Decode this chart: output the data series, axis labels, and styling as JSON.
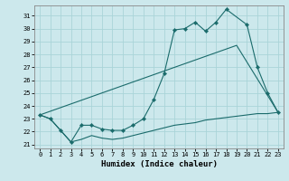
{
  "xlabel": "Humidex (Indice chaleur)",
  "bg_color": "#cce8ec",
  "grid_color": "#aad4d8",
  "line_color": "#1a6b6b",
  "xlim": [
    -0.5,
    23.5
  ],
  "ylim": [
    20.7,
    31.8
  ],
  "yticks": [
    21,
    22,
    23,
    24,
    25,
    26,
    27,
    28,
    29,
    30,
    31
  ],
  "xticks": [
    0,
    1,
    2,
    3,
    4,
    5,
    6,
    7,
    8,
    9,
    10,
    11,
    12,
    13,
    14,
    15,
    16,
    17,
    18,
    19,
    20,
    21,
    22,
    23
  ],
  "line1_x": [
    0,
    1,
    2,
    3,
    4,
    5,
    6,
    7,
    8,
    9,
    10,
    11,
    12,
    13,
    14,
    15,
    16,
    17,
    18,
    20,
    21,
    22,
    23
  ],
  "line1_y": [
    23.3,
    23.0,
    22.1,
    21.2,
    22.5,
    22.5,
    22.2,
    22.1,
    22.1,
    22.5,
    23.0,
    24.5,
    26.5,
    29.9,
    30.0,
    30.5,
    29.8,
    30.5,
    31.5,
    30.3,
    27.0,
    25.0,
    23.5
  ],
  "line2_x": [
    0,
    19,
    23
  ],
  "line2_y": [
    23.3,
    28.7,
    23.5
  ],
  "line3_x": [
    0,
    1,
    2,
    3,
    4,
    5,
    6,
    7,
    8,
    9,
    10,
    11,
    12,
    13,
    14,
    15,
    16,
    17,
    18,
    19,
    20,
    21,
    22,
    23
  ],
  "line3_y": [
    23.3,
    23.0,
    22.1,
    21.2,
    21.4,
    21.7,
    21.5,
    21.4,
    21.5,
    21.7,
    21.9,
    22.1,
    22.3,
    22.5,
    22.6,
    22.7,
    22.9,
    23.0,
    23.1,
    23.2,
    23.3,
    23.4,
    23.4,
    23.5
  ]
}
